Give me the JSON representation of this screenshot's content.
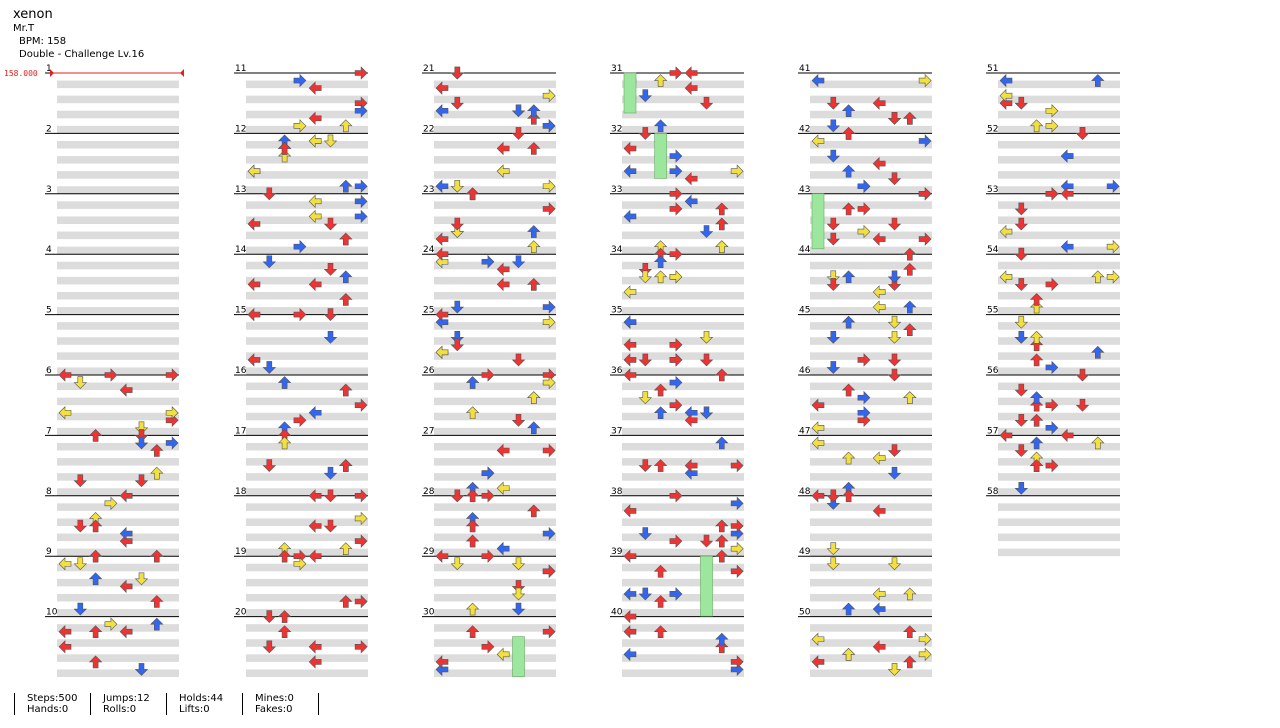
{
  "song": {
    "title": "xenon",
    "artist": "Mr.T",
    "bpm_label": "BPM: 158",
    "difficulty": "Double - Challenge Lv.16"
  },
  "bpm_marker": {
    "value_label": "158.000",
    "color": "#e02020"
  },
  "measure_count": 58,
  "measures_per_column": 10,
  "columns": [
    {
      "start_measure": 1
    },
    {
      "start_measure": 11
    },
    {
      "start_measure": 21
    },
    {
      "start_measure": 31
    },
    {
      "start_measure": 41
    },
    {
      "start_measure": 51
    }
  ],
  "colors": {
    "quarter_arrow": "#ee3333",
    "eighth_arrow": "#3366ee",
    "sixteenth_arrow": "#f2e040",
    "hold_body": "#9de69d",
    "beat_band": "#dcdcdc",
    "measure_line": "#000000",
    "bpm_line": "#e02020"
  },
  "stats": {
    "steps": "Steps:500",
    "hands": "Hands:0",
    "jumps": "Jumps:12",
    "rolls": "Rolls:0",
    "holds": "Holds:44",
    "lifts": "Lifts:0",
    "mines": "Mines:0",
    "fakes": "Fakes:0"
  }
}
